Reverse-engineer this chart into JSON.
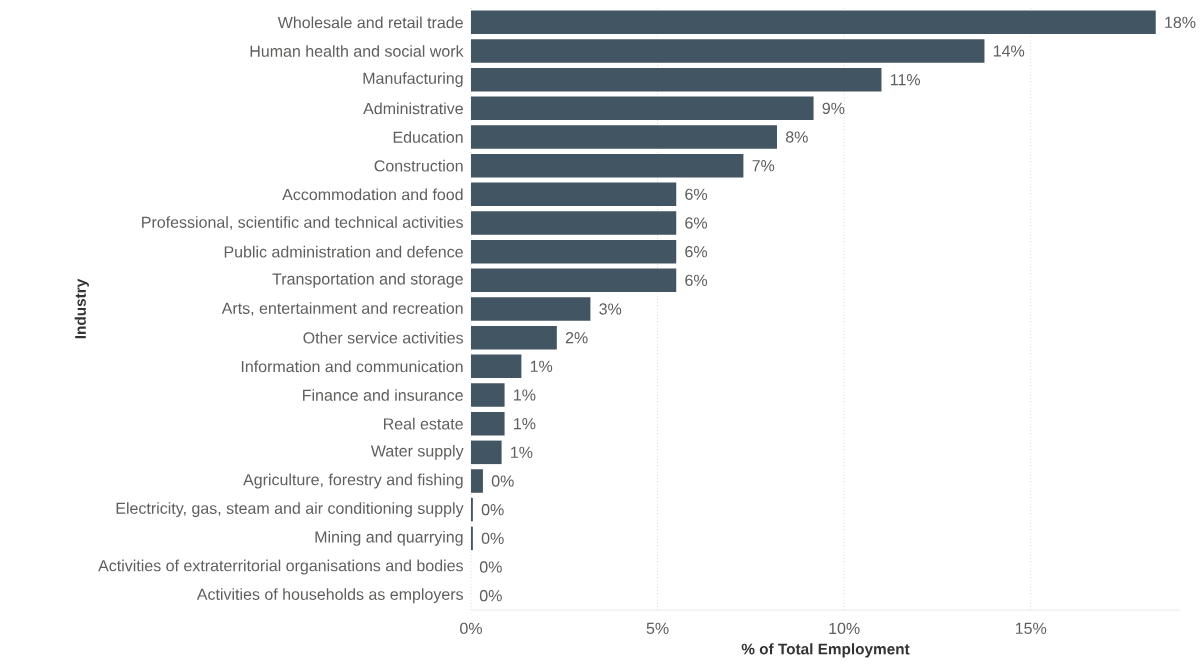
{
  "chart_data": {
    "type": "bar",
    "orientation": "horizontal",
    "xlabel": "% of Total Employment",
    "ylabel": "Industry",
    "categories": [
      "Wholesale and retail trade",
      "Human health and social work",
      "Manufacturing",
      "Administrative",
      "Education",
      "Construction",
      "Accommodation and food",
      "Professional, scientific and technical activities",
      "Public administration and defence",
      "Transportation and storage",
      "Arts, entertainment and recreation",
      "Other service activities",
      "Information and communication",
      "Finance and insurance",
      "Real estate",
      "Water supply",
      "Agriculture, forestry and fishing",
      "Electricity, gas, steam and air conditioning supply",
      "Mining and quarrying",
      "Activities of extraterritorial organisations and bodies",
      "Activities of households as employers"
    ],
    "values": [
      18.35,
      13.76,
      11.0,
      9.18,
      8.2,
      7.3,
      5.5,
      5.5,
      5.5,
      5.5,
      3.2,
      2.3,
      1.35,
      0.9,
      0.9,
      0.82,
      0.32,
      0.05,
      0.05,
      0,
      0
    ],
    "value_labels": [
      "18%",
      "14%",
      "11%",
      "9%",
      "8%",
      "7%",
      "6%",
      "6%",
      "6%",
      "6%",
      "3%",
      "2%",
      "1%",
      "1%",
      "1%",
      "1%",
      "0%",
      "0%",
      "0%",
      "0%",
      "0%"
    ],
    "color": "#425563",
    "xticks": [
      {
        "value": 0,
        "label": "0%"
      },
      {
        "value": 5,
        "label": "5%"
      },
      {
        "value": 10,
        "label": "10%"
      },
      {
        "value": 15,
        "label": "15%"
      }
    ],
    "xlim": [
      0,
      19
    ],
    "grid": "x"
  }
}
